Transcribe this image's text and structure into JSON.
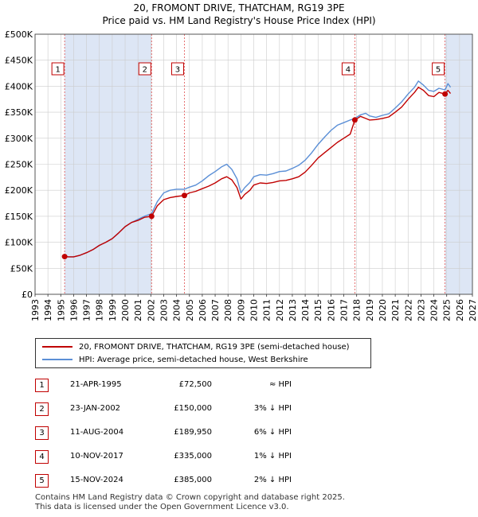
{
  "title_line1": "20, FROMONT DRIVE, THATCHAM, RG19 3PE",
  "title_line2": "Price paid vs. HM Land Registry's House Price Index (HPI)",
  "colors": {
    "price": "#c00000",
    "hpi": "#5b8fd6",
    "shade": "#dde6f5",
    "grid": "#cccccc",
    "vline": "#e05050"
  },
  "chart_data": {
    "type": "line",
    "xlim": [
      1993,
      2027
    ],
    "ylim": [
      0,
      500000
    ],
    "x_ticks": [
      "1993",
      "1994",
      "1995",
      "1996",
      "1997",
      "1998",
      "1999",
      "2000",
      "2001",
      "2002",
      "2003",
      "2004",
      "2005",
      "2006",
      "2007",
      "2008",
      "2009",
      "2010",
      "2011",
      "2012",
      "2013",
      "2014",
      "2015",
      "2016",
      "2017",
      "2018",
      "2019",
      "2020",
      "2021",
      "2022",
      "2023",
      "2024",
      "2025",
      "2026",
      "2027"
    ],
    "y_ticks": [
      {
        "value": 0,
        "label": "£0"
      },
      {
        "value": 50000,
        "label": "£50K"
      },
      {
        "value": 100000,
        "label": "£100K"
      },
      {
        "value": 150000,
        "label": "£150K"
      },
      {
        "value": 200000,
        "label": "£200K"
      },
      {
        "value": 250000,
        "label": "£250K"
      },
      {
        "value": 300000,
        "label": "£300K"
      },
      {
        "value": 350000,
        "label": "£350K"
      },
      {
        "value": 400000,
        "label": "£400K"
      },
      {
        "value": 450000,
        "label": "£450K"
      },
      {
        "value": 500000,
        "label": "£500K"
      }
    ],
    "grid": true,
    "shaded_ranges": [
      [
        1995.3,
        2002.06
      ],
      [
        2024.87,
        2027
      ]
    ],
    "series": [
      {
        "name": "20, FROMONT DRIVE, THATCHAM, RG19 3PE (semi-detached house)",
        "x": [
          1995.3,
          1995.6,
          1996.0,
          1996.5,
          1997.0,
          1997.5,
          1998.0,
          1998.5,
          1999.0,
          1999.5,
          2000.0,
          2000.5,
          2001.0,
          2001.5,
          2002.06,
          2002.5,
          2003.0,
          2003.5,
          2004.0,
          2004.61,
          2005.0,
          2005.5,
          2006.0,
          2006.5,
          2007.0,
          2007.5,
          2007.9,
          2008.3,
          2008.7,
          2009.0,
          2009.3,
          2009.7,
          2010.0,
          2010.5,
          2011.0,
          2011.5,
          2012.0,
          2012.5,
          2013.0,
          2013.5,
          2014.0,
          2014.5,
          2015.0,
          2015.5,
          2016.0,
          2016.5,
          2017.0,
          2017.5,
          2017.86,
          2018.3,
          2018.7,
          2019.0,
          2019.5,
          2020.0,
          2020.5,
          2021.0,
          2021.5,
          2022.0,
          2022.5,
          2022.8,
          2023.2,
          2023.6,
          2024.0,
          2024.4,
          2024.87,
          2025.1,
          2025.3
        ],
        "y": [
          72500,
          72000,
          72000,
          75000,
          80000,
          86000,
          94000,
          100000,
          107000,
          118000,
          130000,
          138000,
          142000,
          148000,
          150000,
          170000,
          182000,
          186000,
          188000,
          189950,
          195000,
          198000,
          203000,
          208000,
          214000,
          222000,
          226000,
          220000,
          205000,
          183000,
          192000,
          200000,
          210000,
          214000,
          213000,
          215000,
          218000,
          219000,
          222000,
          226000,
          235000,
          248000,
          262000,
          272000,
          282000,
          292000,
          300000,
          308000,
          335000,
          342000,
          338000,
          335000,
          336000,
          338000,
          341000,
          350000,
          360000,
          375000,
          388000,
          398000,
          392000,
          382000,
          380000,
          388000,
          385000,
          392000,
          386000
        ]
      },
      {
        "name": "HPI: Average price, semi-detached house, West Berkshire",
        "x": [
          1995.3,
          1995.6,
          1996.0,
          1996.5,
          1997.0,
          1997.5,
          1998.0,
          1998.5,
          1999.0,
          1999.5,
          2000.0,
          2000.5,
          2001.0,
          2001.5,
          2002.06,
          2002.5,
          2003.0,
          2003.5,
          2004.0,
          2004.61,
          2005.0,
          2005.5,
          2006.0,
          2006.5,
          2007.0,
          2007.5,
          2007.9,
          2008.3,
          2008.7,
          2009.0,
          2009.3,
          2009.7,
          2010.0,
          2010.5,
          2011.0,
          2011.5,
          2012.0,
          2012.5,
          2013.0,
          2013.5,
          2014.0,
          2014.5,
          2015.0,
          2015.5,
          2016.0,
          2016.5,
          2017.0,
          2017.5,
          2017.86,
          2018.3,
          2018.7,
          2019.0,
          2019.5,
          2020.0,
          2020.5,
          2021.0,
          2021.5,
          2022.0,
          2022.5,
          2022.8,
          2023.2,
          2023.6,
          2024.0,
          2024.4,
          2024.87,
          2025.1,
          2025.3
        ],
        "y": [
          72500,
          72000,
          72000,
          75000,
          80000,
          86000,
          94000,
          100000,
          107000,
          118000,
          130000,
          138000,
          144000,
          150000,
          155000,
          178000,
          195000,
          200000,
          202000,
          202000,
          206000,
          210000,
          218000,
          228000,
          236000,
          245000,
          250000,
          240000,
          222000,
          195000,
          205000,
          215000,
          226000,
          230000,
          229000,
          232000,
          236000,
          237000,
          242000,
          248000,
          258000,
          272000,
          288000,
          302000,
          315000,
          325000,
          330000,
          335000,
          338000,
          345000,
          348000,
          343000,
          340000,
          344000,
          347000,
          358000,
          370000,
          385000,
          398000,
          410000,
          402000,
          392000,
          390000,
          396000,
          393000,
          405000,
          398000
        ]
      }
    ],
    "sales": [
      {
        "num": "1",
        "x": 1995.3,
        "y": 72500
      },
      {
        "num": "2",
        "x": 2002.06,
        "y": 150000
      },
      {
        "num": "3",
        "x": 2004.61,
        "y": 189950
      },
      {
        "num": "4",
        "x": 2017.86,
        "y": 335000
      },
      {
        "num": "5",
        "x": 2024.87,
        "y": 385000
      }
    ]
  },
  "legend": {
    "price_label": "20, FROMONT DRIVE, THATCHAM, RG19 3PE (semi-detached house)",
    "hpi_label": "HPI: Average price, semi-detached house, West Berkshire"
  },
  "sales_table": [
    {
      "num": "1",
      "date": "21-APR-1995",
      "price": "£72,500",
      "hpi": "≈ HPI"
    },
    {
      "num": "2",
      "date": "23-JAN-2002",
      "price": "£150,000",
      "hpi": "3% ↓ HPI"
    },
    {
      "num": "3",
      "date": "11-AUG-2004",
      "price": "£189,950",
      "hpi": "6% ↓ HPI"
    },
    {
      "num": "4",
      "date": "10-NOV-2017",
      "price": "£335,000",
      "hpi": "1% ↓ HPI"
    },
    {
      "num": "5",
      "date": "15-NOV-2024",
      "price": "£385,000",
      "hpi": "2% ↓ HPI"
    }
  ],
  "footer_line1": "Contains HM Land Registry data © Crown copyright and database right 2025.",
  "footer_line2": "This data is licensed under the Open Government Licence v3.0."
}
